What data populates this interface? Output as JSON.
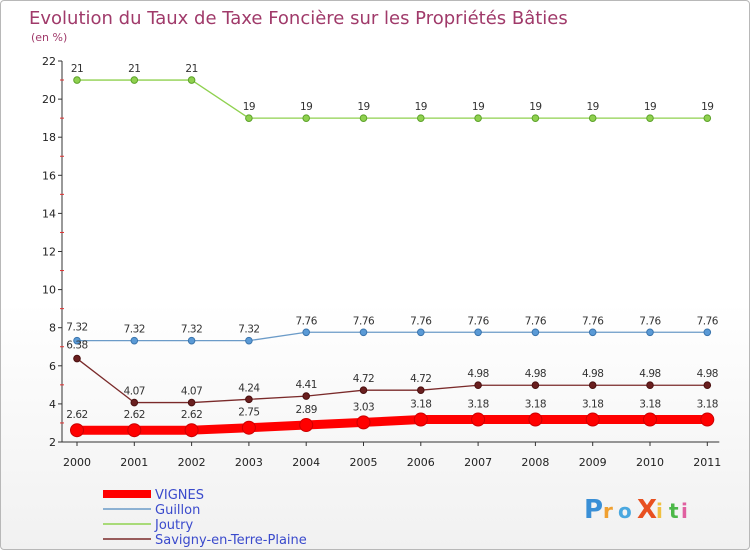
{
  "chart_data": {
    "type": "line",
    "title": "Evolution du Taux de Taxe Foncière sur les Propriétés Bâties",
    "subtitle": "(en %)",
    "xlabel": "",
    "ylabel": "",
    "x": [
      "2000",
      "2001",
      "2002",
      "2003",
      "2004",
      "2005",
      "2006",
      "2007",
      "2008",
      "2009",
      "2010",
      "2011"
    ],
    "ylim": [
      2,
      22
    ],
    "yticks": [
      "2",
      "4",
      "6",
      "8",
      "10",
      "12",
      "14",
      "16",
      "18",
      "20",
      "22"
    ],
    "series": [
      {
        "name": "VIGNES",
        "color": "#ff0000",
        "values": [
          2.62,
          2.62,
          2.62,
          2.75,
          2.89,
          3.03,
          3.18,
          3.18,
          3.18,
          3.18,
          3.18,
          3.18
        ],
        "labels": [
          "2.62",
          "2.62",
          "2.62",
          "2.75",
          "2.89",
          "3.03",
          "3.18",
          "3.18",
          "3.18",
          "3.18",
          "3.18",
          "3.18"
        ]
      },
      {
        "name": "Guillon",
        "color": "#6b9bc8",
        "values": [
          7.32,
          7.32,
          7.32,
          7.32,
          7.76,
          7.76,
          7.76,
          7.76,
          7.76,
          7.76,
          7.76,
          7.76
        ],
        "labels": [
          "7.32",
          "7.32",
          "7.32",
          "7.32",
          "7.76",
          "7.76",
          "7.76",
          "7.76",
          "7.76",
          "7.76",
          "7.76",
          "7.76"
        ]
      },
      {
        "name": "Joutry",
        "color": "#8fd14f",
        "values": [
          21,
          21,
          21,
          19,
          19,
          19,
          19,
          19,
          19,
          19,
          19,
          19
        ],
        "labels": [
          "21",
          "21",
          "21",
          "19",
          "19",
          "19",
          "19",
          "19",
          "19",
          "19",
          "19",
          "19"
        ]
      },
      {
        "name": "Savigny-en-Terre-Plaine",
        "color": "#7a2a2a",
        "values": [
          6.38,
          4.07,
          4.07,
          4.24,
          4.41,
          4.72,
          4.72,
          4.98,
          4.98,
          4.98,
          4.98,
          4.98
        ],
        "labels": [
          "6.38",
          "4.07",
          "4.07",
          "4.24",
          "4.41",
          "4.72",
          "4.72",
          "4.98",
          "4.98",
          "4.98",
          "4.98",
          "4.98"
        ]
      }
    ],
    "legend_position": "bottom-left",
    "grid": false
  },
  "logo_text": "ProXiti"
}
